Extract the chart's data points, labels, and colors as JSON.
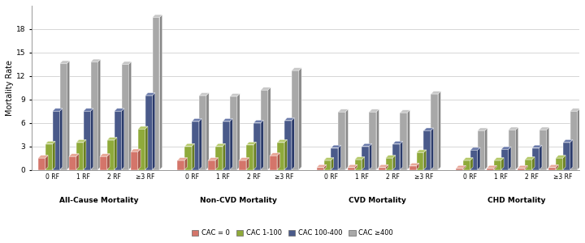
{
  "groups": [
    "All-Cause Mortality",
    "Non-CVD Mortality",
    "CVD Mortality",
    "CHD Mortality"
  ],
  "rf_labels": [
    "0 RF",
    "1 RF",
    "2 RF",
    "≥3 RF"
  ],
  "series_labels": [
    "CAC = 0",
    "CAC 1-100",
    "CAC 100-400",
    "CAC ≥400"
  ],
  "colors_front": [
    "#d4756a",
    "#8faa3a",
    "#4a5a8a",
    "#a8a8a8"
  ],
  "colors_top": [
    "#e8a898",
    "#b5c96a",
    "#6a7aaa",
    "#c8c8c8"
  ],
  "colors_side": [
    "#a85848",
    "#6a8020",
    "#2a3a6a",
    "#888888"
  ],
  "values": {
    "All-Cause Mortality": {
      "0 RF": [
        1.5,
        3.3,
        7.5,
        13.6
      ],
      "1 RF": [
        1.7,
        3.5,
        7.5,
        13.8
      ],
      "2 RF": [
        1.7,
        3.8,
        7.5,
        13.5
      ],
      ">=3 RF": [
        2.3,
        5.2,
        9.5,
        19.5
      ]
    },
    "Non-CVD Mortality": {
      "0 RF": [
        1.2,
        3.0,
        6.2,
        9.5
      ],
      "1 RF": [
        1.2,
        3.0,
        6.2,
        9.4
      ],
      "2 RF": [
        1.2,
        3.2,
        6.0,
        10.2
      ],
      ">=3 RF": [
        1.8,
        3.5,
        6.3,
        12.7
      ]
    },
    "CVD Mortality": {
      "0 RF": [
        0.3,
        1.2,
        2.8,
        7.4
      ],
      "1 RF": [
        0.3,
        1.3,
        3.0,
        7.4
      ],
      "2 RF": [
        0.3,
        1.5,
        3.3,
        7.3
      ],
      ">=3 RF": [
        0.5,
        2.2,
        5.0,
        9.7
      ]
    },
    "CHD Mortality": {
      "0 RF": [
        0.2,
        1.2,
        2.5,
        5.0
      ],
      "1 RF": [
        0.2,
        1.2,
        2.6,
        5.1
      ],
      "2 RF": [
        0.2,
        1.3,
        2.8,
        5.1
      ],
      ">=3 RF": [
        0.3,
        1.5,
        3.5,
        7.5
      ]
    }
  },
  "ylabel": "Mortality Rate",
  "ylim": [
    0,
    21
  ],
  "yticks": [
    0,
    3,
    6,
    9,
    12,
    15,
    18
  ],
  "background_color": "#ffffff",
  "grid_color": "#d0d0d0"
}
